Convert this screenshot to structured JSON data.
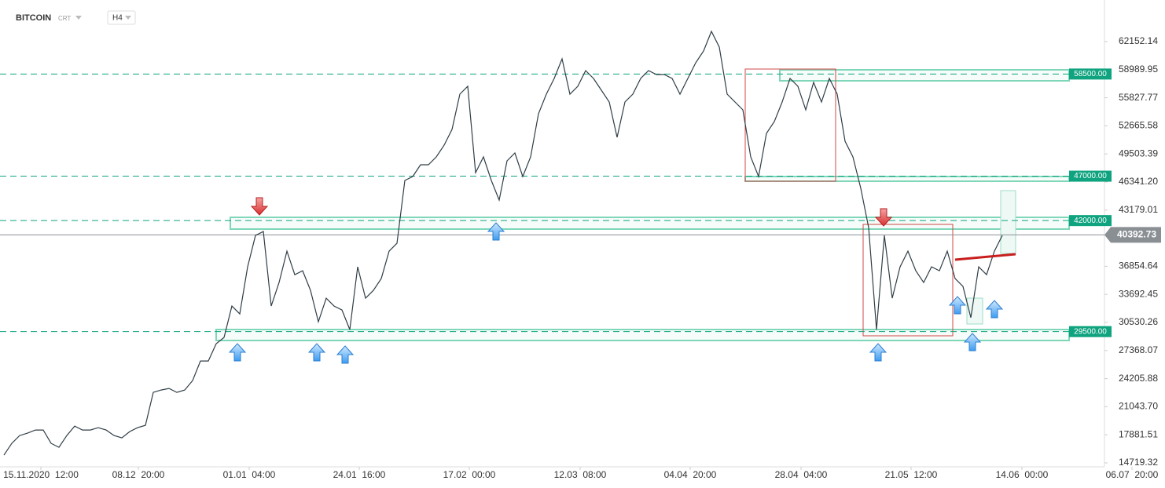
{
  "header": {
    "symbol": "BITCOIN",
    "source": "CRT",
    "interval": "H4"
  },
  "chart_data": {
    "type": "line",
    "series": [
      {
        "name": "BITCOIN",
        "color": "#2f3e46",
        "values": [
          15592,
          16917,
          17801,
          18066,
          18420,
          18420,
          16917,
          16475,
          17801,
          18861,
          18420,
          18420,
          18685,
          18420,
          17801,
          17536,
          18243,
          18685,
          18949,
          22660,
          22925,
          23102,
          22660,
          22925,
          23985,
          26194,
          26194,
          28138,
          28845,
          32379,
          31495,
          36796,
          40330,
          40772,
          32379,
          35029,
          38563,
          35913,
          36355,
          34146,
          30612,
          33262,
          32379,
          31937,
          29728,
          36796,
          33262,
          34146,
          35471,
          38563,
          39447,
          46515,
          46956,
          48282,
          48282,
          49165,
          50490,
          52258,
          56233,
          57118,
          47397,
          49165,
          46515,
          44306,
          48724,
          49607,
          46956,
          49165,
          54026,
          56233,
          57998,
          60209,
          56233,
          57118,
          58883,
          57998,
          56675,
          55350,
          51374,
          55350,
          56233,
          57998,
          58883,
          58442,
          58442,
          57998,
          56233,
          57998,
          59767,
          61092,
          63301,
          61534,
          56233,
          55350,
          54466,
          49165,
          46956,
          51816,
          53141,
          55350,
          57998,
          57118,
          54466,
          57558,
          55350,
          57998,
          56233,
          50932,
          49165,
          45631,
          41214,
          29728,
          40330,
          33262,
          36796,
          38563,
          36355,
          35029,
          36796,
          36355,
          38563,
          35471,
          34587,
          31075,
          36796,
          35913,
          38563,
          40330
        ]
      }
    ],
    "xlim": [
      -0.5,
      147.7
    ],
    "xticks": [
      {
        "value": 4.7,
        "label": "15.11.2020  12:00"
      },
      {
        "value": 17.1,
        "label": "08.12  20:00"
      },
      {
        "value": 31.2,
        "label": "01.01  04:00"
      },
      {
        "value": 45.2,
        "label": "24.01  16:00"
      },
      {
        "value": 59.2,
        "label": "17.02  00:00"
      },
      {
        "value": 73.3,
        "label": "12.03  08:00"
      },
      {
        "value": 87.3,
        "label": "04.04  20:00"
      },
      {
        "value": 101.4,
        "label": "28.04  04:00"
      },
      {
        "value": 115.4,
        "label": "21.05  12:00"
      },
      {
        "value": 129.5,
        "label": "14.06  00:00"
      },
      {
        "value": 143.5,
        "label": "06.07  20:00"
      }
    ],
    "ylim": [
      14277,
      66835
    ],
    "yticks": [
      62152.14,
      58989.95,
      55827.77,
      52665.58,
      49503.39,
      {
        "value": 46341.2,
        "label": "46341.20"
      },
      43179.01,
      36854.64,
      33692.45,
      30530.26,
      27368.07,
      24205.88,
      {
        "value": 21043.7,
        "label": "21043.70"
      },
      17881.51,
      14719.32
    ],
    "levels": [
      {
        "value": 58500,
        "label": "58500.00"
      },
      {
        "value": 47000,
        "label": "47000.00"
      },
      {
        "value": 42000,
        "label": "42000.00"
      },
      {
        "value": 29500,
        "label": "29500.00"
      }
    ],
    "level_color": "#0fa37f",
    "current_price": {
      "value": 40392.73,
      "label": "40392.73"
    }
  }
}
